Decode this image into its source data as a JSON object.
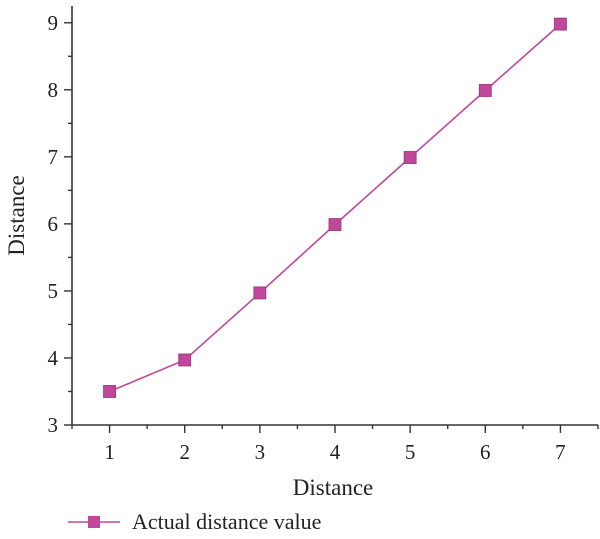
{
  "chart_data": {
    "type": "line",
    "x": [
      1,
      2,
      3,
      4,
      5,
      6,
      7
    ],
    "series": [
      {
        "name": "Actual distance value",
        "values": [
          3.5,
          3.97,
          4.97,
          5.99,
          6.99,
          7.99,
          8.98
        ],
        "color": "#c0489b",
        "marker": "square"
      }
    ],
    "xlabel": "Distance",
    "ylabel": "Distance",
    "xlim": [
      0.5,
      7.5
    ],
    "ylim": [
      3,
      9.25
    ],
    "xticks": [
      1,
      2,
      3,
      4,
      5,
      6,
      7
    ],
    "yticks": [
      3,
      4,
      5,
      6,
      7,
      8,
      9
    ],
    "grid": false,
    "legend": "bottom-left"
  }
}
